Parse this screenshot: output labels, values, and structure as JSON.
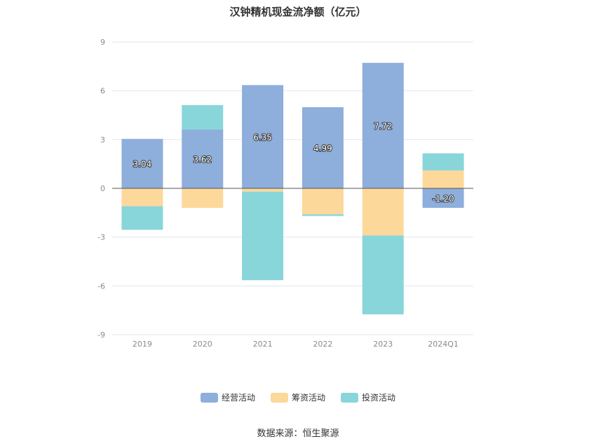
{
  "chart_data": {
    "type": "bar",
    "stacked": true,
    "title": "汉钟精机现金流净额（亿元）",
    "categories": [
      "2019",
      "2020",
      "2021",
      "2022",
      "2023",
      "2024Q1"
    ],
    "yticks": [
      "9",
      "6",
      "3",
      "0",
      "-3",
      "-6",
      "-9"
    ],
    "ylim": [
      -9,
      9
    ],
    "grid": true,
    "legend_position": "bottom",
    "series": [
      {
        "name": "经营活动",
        "color": "#8eaedb",
        "values": [
          3.04,
          3.62,
          6.35,
          4.99,
          7.72,
          -1.2
        ],
        "labels": [
          "3.04",
          "3.62",
          "6.35",
          "4.99",
          "7.72",
          "-1.20"
        ]
      },
      {
        "name": "筹资活动",
        "color": "#fdd89b",
        "values": [
          -1.1,
          -1.2,
          -0.2,
          -1.6,
          -2.9,
          1.1
        ]
      },
      {
        "name": "投资活动",
        "color": "#88d6da",
        "values": [
          -1.45,
          1.5,
          -5.45,
          -0.1,
          -4.85,
          1.05
        ]
      }
    ]
  },
  "source": "数据来源：恒生聚源"
}
